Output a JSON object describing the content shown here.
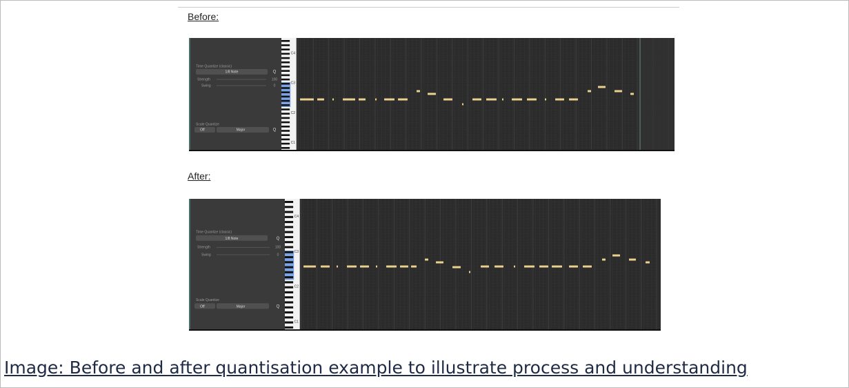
{
  "doc": {
    "before_label": "Before:",
    "after_label": "After:",
    "caption": "Image: Before and after quantisation example to illustrate process and understanding",
    "panels": [
      {
        "quantize_title": "Time Quantize (classic)",
        "note_value": "1/8 Note",
        "q_button": "Q",
        "strength_label": "Strength",
        "strength_value": 100,
        "swing_label": "Swing",
        "swing_value": 0,
        "scale_title": "Scale Quantize",
        "scale_off": "Off",
        "scale_mode": "Major",
        "scale_q": "Q",
        "octaves": [
          "C4",
          "C3",
          "C2",
          "C1"
        ]
      },
      {
        "quantize_title": "Time Quantize (classic)",
        "note_value": "1/8 Note",
        "q_button": "Q",
        "strength_label": "Strength",
        "strength_value": 100,
        "swing_label": "Swing",
        "swing_value": 0,
        "scale_title": "Scale Quantize",
        "scale_off": "Off",
        "scale_mode": "Major",
        "scale_q": "Q",
        "octaves": [
          "C4",
          "C3",
          "C2",
          "C1"
        ]
      }
    ]
  }
}
